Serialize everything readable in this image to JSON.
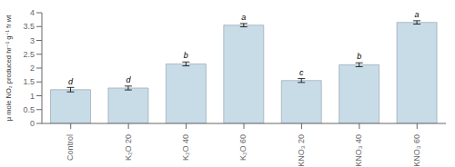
{
  "chart_data": {
    "type": "bar",
    "categories": [
      "Control",
      "K₂O 20",
      "K₂O 40",
      "K₂O 60",
      "KNO₃ 20",
      "KNO₃ 40",
      "KNO₃ 60"
    ],
    "values": [
      1.22,
      1.28,
      2.15,
      3.55,
      1.55,
      2.12,
      3.65
    ],
    "errors": [
      0.08,
      0.07,
      0.07,
      0.06,
      0.07,
      0.07,
      0.06
    ],
    "annotations": [
      "d",
      "d",
      "b",
      "a",
      "c",
      "b",
      "a"
    ],
    "color": "#c8dce8",
    "ylabel": "µ mole NO₂ produced hr⁻¹ g⁻¹ fr wt",
    "ylim": [
      0,
      4.0
    ],
    "yticks": [
      0,
      0.5,
      1,
      1.5,
      2,
      2.5,
      3,
      3.5,
      4
    ],
    "grid": false
  }
}
